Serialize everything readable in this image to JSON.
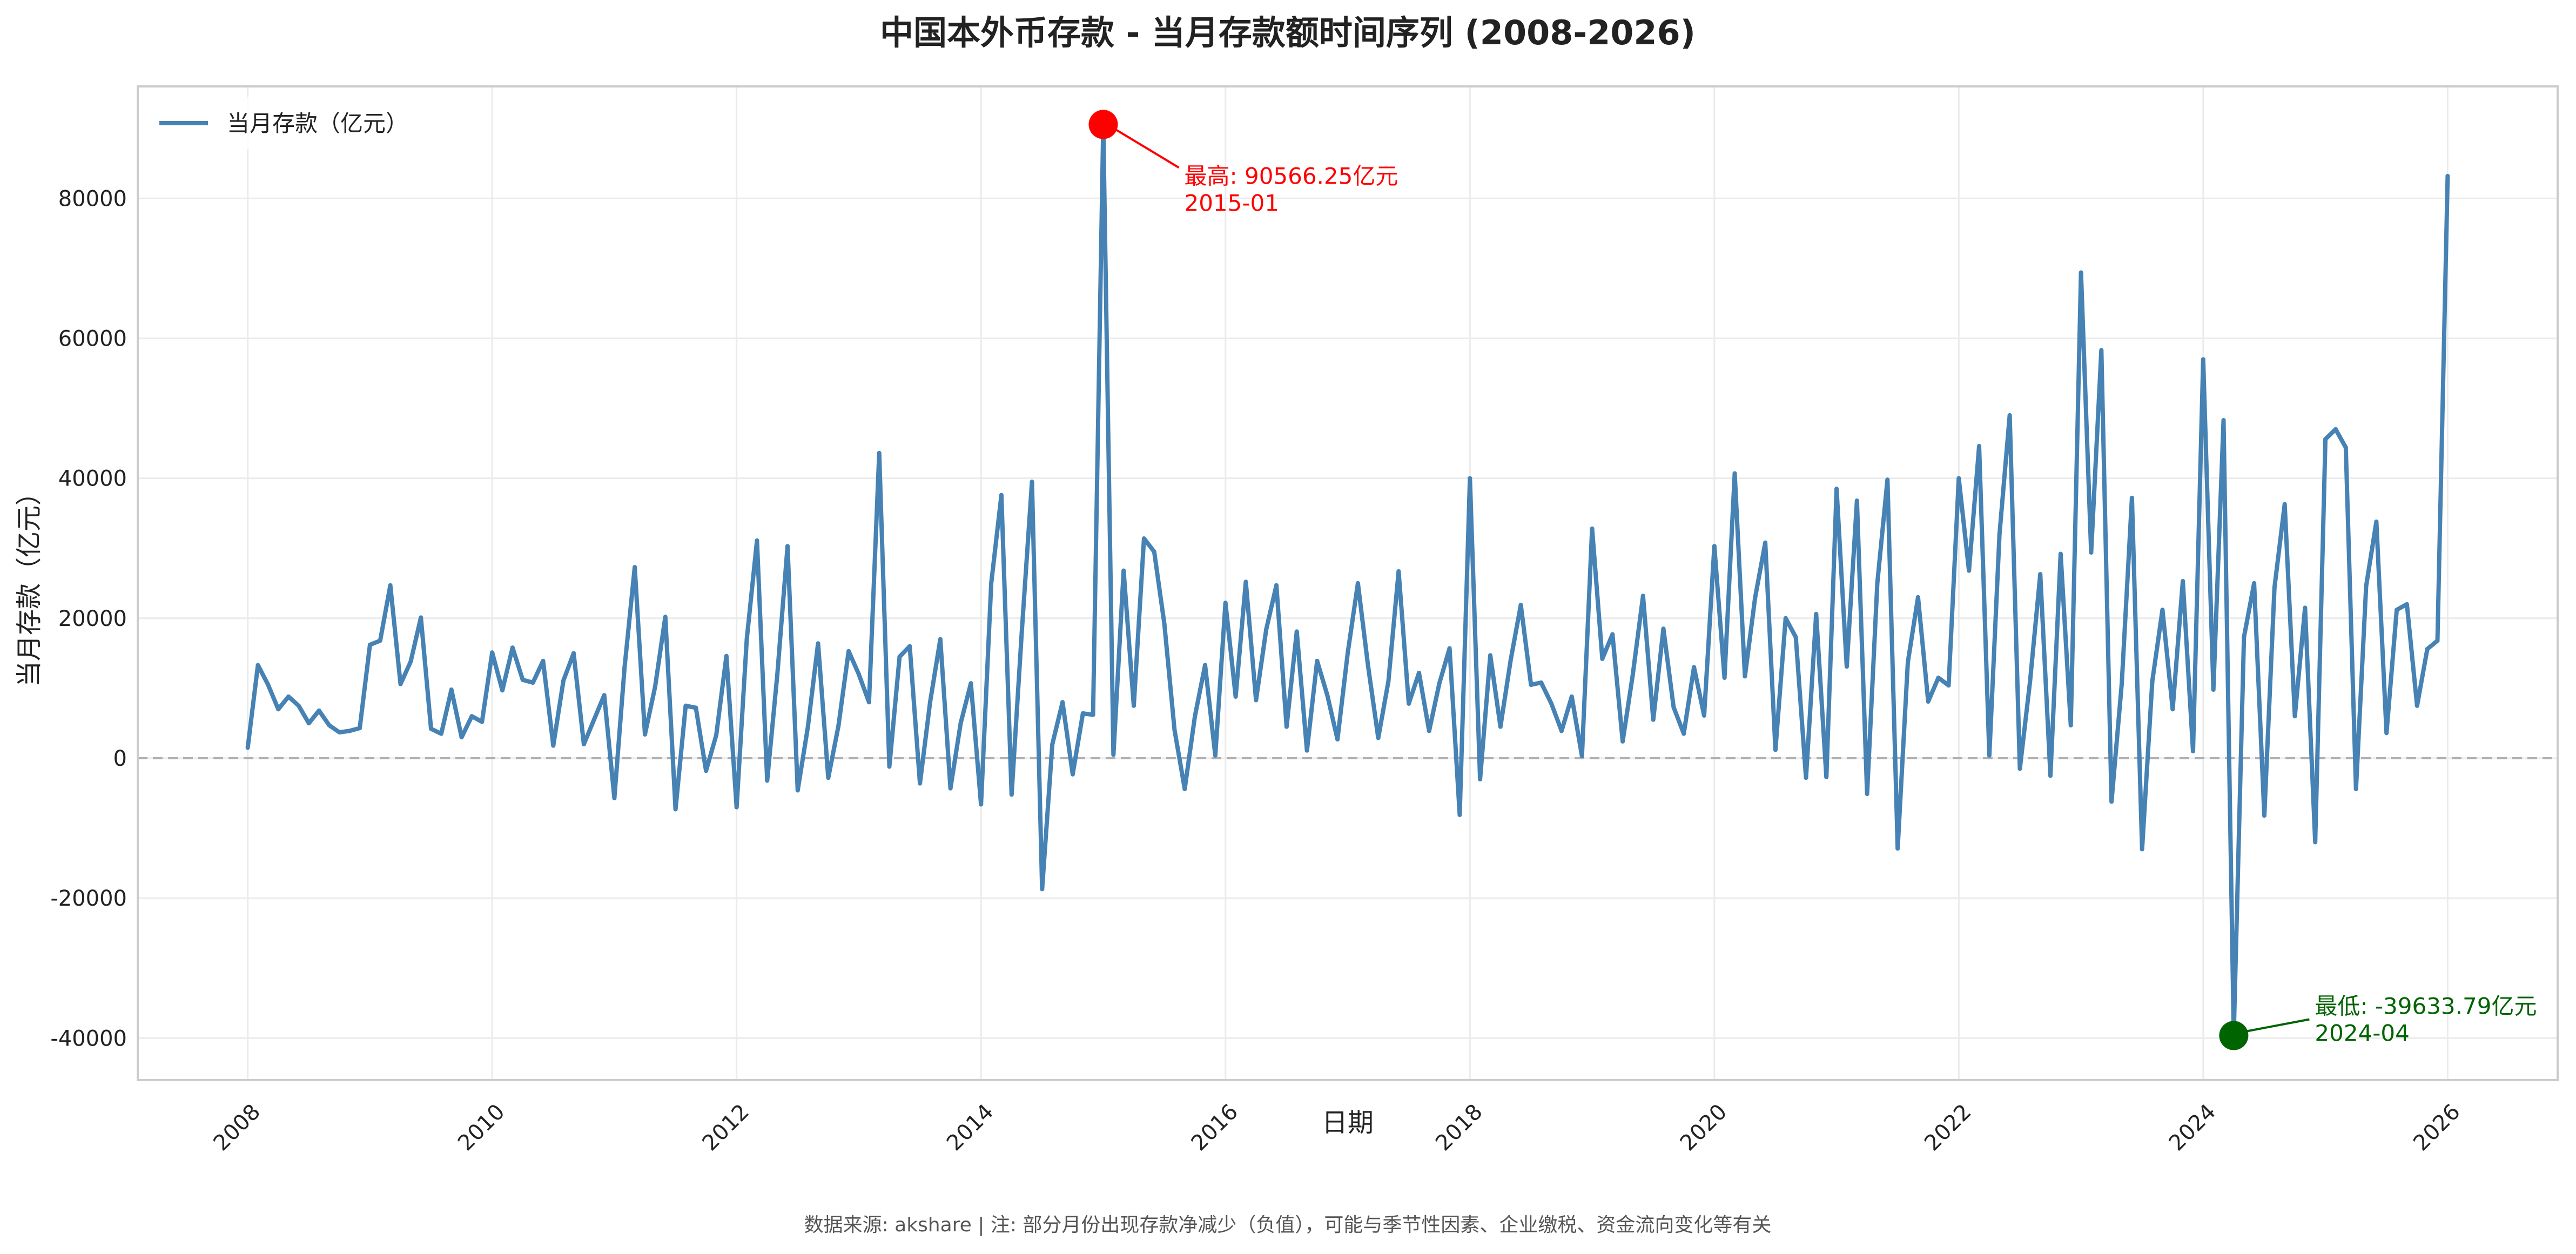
{
  "chart_data": {
    "type": "line",
    "title": "中国本外币存款 - 当月存款额时间序列 (2008-2026)",
    "xlabel": "日期",
    "ylabel": "当月存款（亿元）",
    "ylim": [
      -46000,
      96000
    ],
    "xlim": [
      2007.1,
      2026.9
    ],
    "yticks": [
      -40000,
      -20000,
      0,
      20000,
      40000,
      60000,
      80000
    ],
    "ytick_labels": [
      "-40000",
      "-20000",
      "0",
      "20000",
      "40000",
      "60000",
      "80000"
    ],
    "xticks": [
      2008,
      2010,
      2012,
      2014,
      2016,
      2018,
      2020,
      2022,
      2024,
      2026
    ],
    "xtick_labels": [
      "2008",
      "2010",
      "2012",
      "2014",
      "2016",
      "2018",
      "2020",
      "2022",
      "2024",
      "2026"
    ],
    "grid": true,
    "legend": {
      "position": "top-left",
      "entries": [
        "当月存款（亿元）"
      ]
    },
    "start": "2008-01",
    "frequency": "monthly",
    "series": [
      {
        "name": "当月存款（亿元）",
        "color": "#4682b4",
        "values": [
          1500,
          13300,
          10500,
          7000,
          8800,
          7500,
          5000,
          6800,
          4700,
          3700,
          3900,
          4300,
          16200,
          16800,
          24700,
          10600,
          13800,
          20100,
          4200,
          3500,
          9800,
          3000,
          6000,
          5200,
          15100,
          9700,
          15800,
          11200,
          10800,
          13900,
          1800,
          11100,
          15000,
          2000,
          5500,
          9000,
          -5700,
          13000,
          27300,
          3400,
          10200,
          20200,
          -7300,
          7500,
          7200,
          -1800,
          3300,
          14600,
          -7000,
          17000,
          31100,
          -3200,
          12000,
          30300,
          -4600,
          4500,
          16400,
          -2800,
          4600,
          15300,
          12000,
          8000,
          43600,
          -1200,
          14500,
          16000,
          -3600,
          8000,
          17000,
          -4300,
          5000,
          10700,
          -6600,
          25000,
          37600,
          -5200,
          18000,
          39500,
          -18700,
          2000,
          8000,
          -2300,
          6400,
          6200,
          90566.25,
          500,
          26800,
          7500,
          31400,
          29500,
          19200,
          4000,
          -4400,
          6000,
          13300,
          400,
          22200,
          8800,
          25200,
          8300,
          18400,
          24700,
          4500,
          18100,
          1100,
          13900,
          9000,
          2700,
          15000,
          25000,
          13200,
          2900,
          11000,
          26700,
          7800,
          12200,
          3900,
          10700,
          15700,
          -8100,
          40000,
          -3000,
          14700,
          4500,
          14000,
          21900,
          10500,
          10800,
          7800,
          3900,
          8800,
          300,
          32800,
          14200,
          17700,
          2400,
          12000,
          23200,
          5500,
          18500,
          7300,
          3500,
          13000,
          6100,
          30300,
          11500,
          40700,
          11700,
          22900,
          30800,
          1200,
          20000,
          17300,
          -2800,
          20600,
          -2700,
          38500,
          13100,
          36800,
          -5100,
          25000,
          39800,
          -12900,
          13700,
          23000,
          8100,
          11500,
          10400,
          40000,
          26800,
          44600,
          400,
          32000,
          49000,
          -1500,
          11000,
          26300,
          -2500,
          29200,
          4700,
          69400,
          29400,
          58300,
          -6200,
          10600,
          37200,
          -13000,
          11000,
          21200,
          7000,
          25300,
          1000,
          57000,
          9800,
          48300,
          -39633.79,
          17300,
          25000,
          -8200,
          24400,
          36300,
          6000,
          21500,
          -12000,
          45600,
          47000,
          44400,
          -4400,
          24600,
          33800,
          3600,
          21200,
          22000,
          7500,
          15600,
          16800,
          83200
        ]
      }
    ],
    "reference_line": {
      "y": 0,
      "style": "dashed",
      "color": "#b0b0b0"
    },
    "annotations": [
      {
        "label": "最高: 90566.25亿元",
        "date_label": "2015-01",
        "x": "2015-01",
        "y": 90566.25,
        "color": "#ff0000"
      },
      {
        "label": "最低: -39633.79亿元",
        "date_label": "2024-04",
        "x": "2024-04",
        "y": -39633.79,
        "color": "#006400"
      }
    ],
    "footnote": "数据来源: akshare | 注: 部分月份出现存款净减少（负值），可能与季节性因素、企业缴税、资金流向变化等有关"
  }
}
